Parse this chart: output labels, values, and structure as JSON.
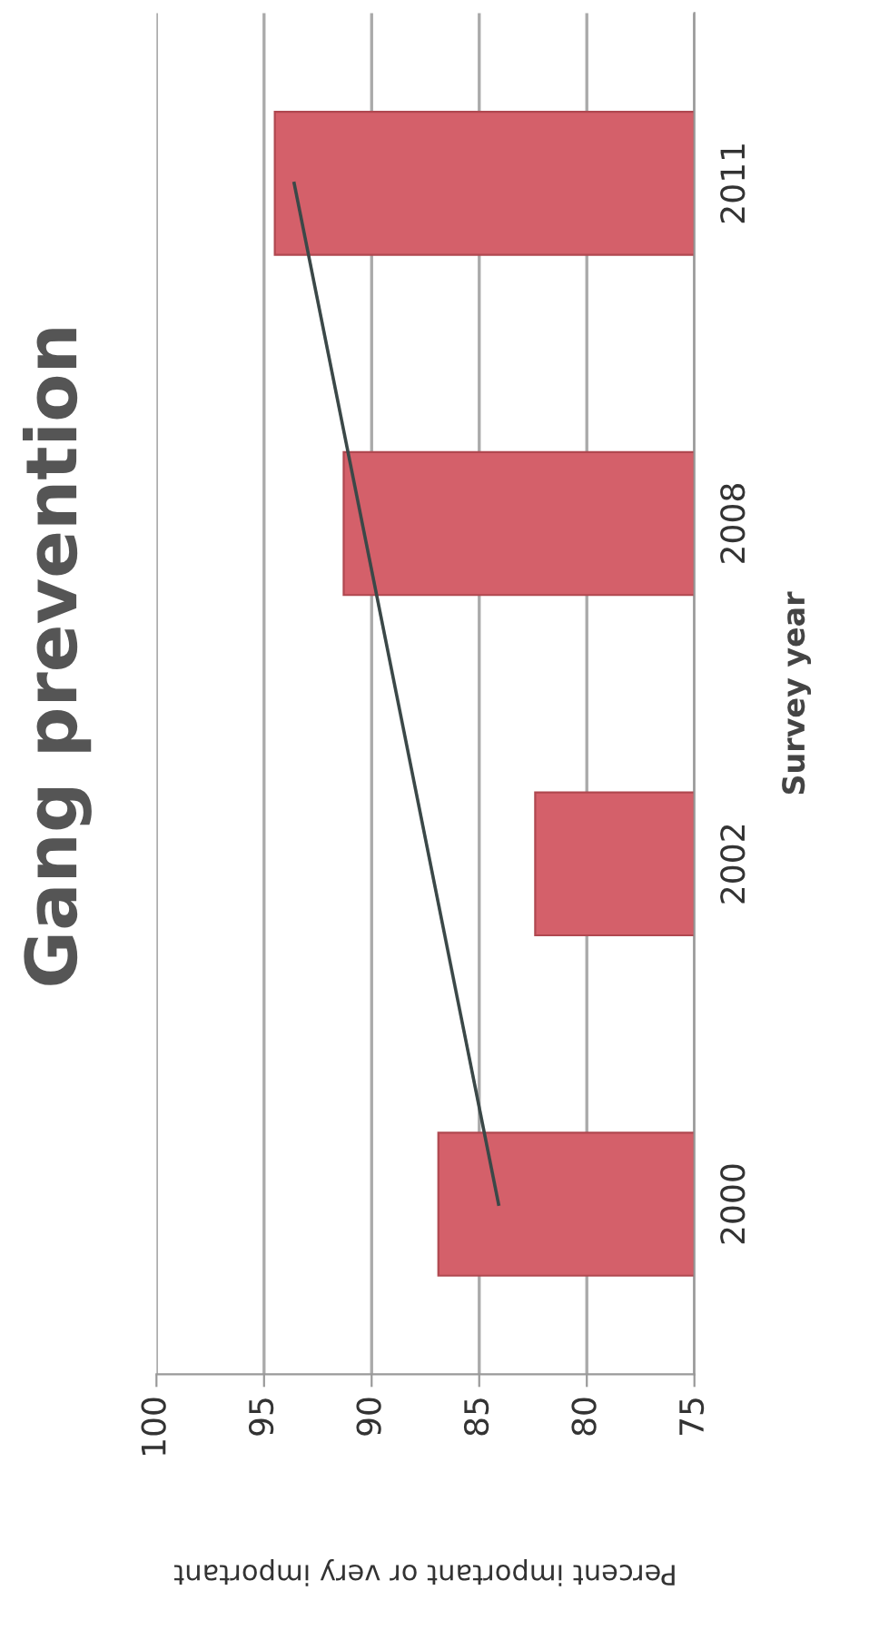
{
  "chart_data": {
    "type": "bar",
    "orientation": "horizontal",
    "title": "Gang prevention",
    "xlabel": "Percent important or very important",
    "ylabel": "Survey year",
    "categories": [
      "2011",
      "2008",
      "2002",
      "2000"
    ],
    "series": [
      {
        "color": "#d4606a",
        "values": [
          94.5,
          91.3,
          82.4,
          86.9
        ]
      },
      {
        "type": "line",
        "color": "#3b4848",
        "values": [
          93.6,
          null,
          null,
          84.1
        ]
      }
    ],
    "xlim": [
      100,
      75
    ],
    "xticks": [
      100,
      95,
      90,
      85,
      80,
      75
    ],
    "grid": "x",
    "legend": false
  }
}
